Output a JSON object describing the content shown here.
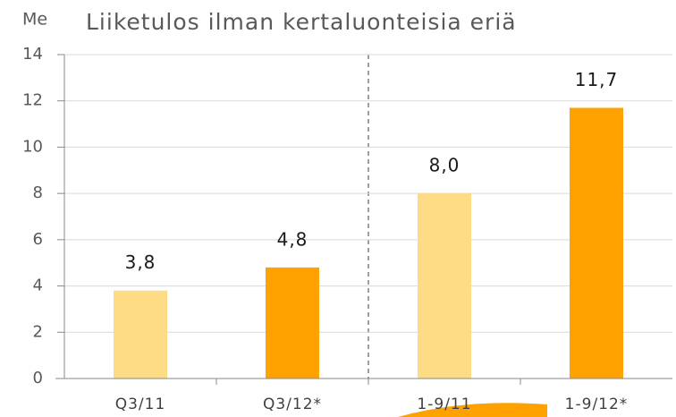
{
  "chart_data": {
    "type": "bar",
    "title": "Liiketulos ilman kertaluonteisia eriä",
    "y_label": "Me",
    "categories": [
      "Q3/11",
      "Q3/12*",
      "1-9/11",
      "1-9/12*"
    ],
    "values": [
      3.8,
      4.8,
      8.0,
      11.7
    ],
    "value_labels": [
      "3,8",
      "4,8",
      "8,0",
      "11,7"
    ],
    "colors": [
      "#fddc85",
      "#ffa200",
      "#fddc85",
      "#ffa200"
    ],
    "ylim": [
      0,
      14
    ],
    "yticks": [
      0,
      2,
      4,
      6,
      8,
      10,
      12,
      14
    ],
    "grid": true
  }
}
